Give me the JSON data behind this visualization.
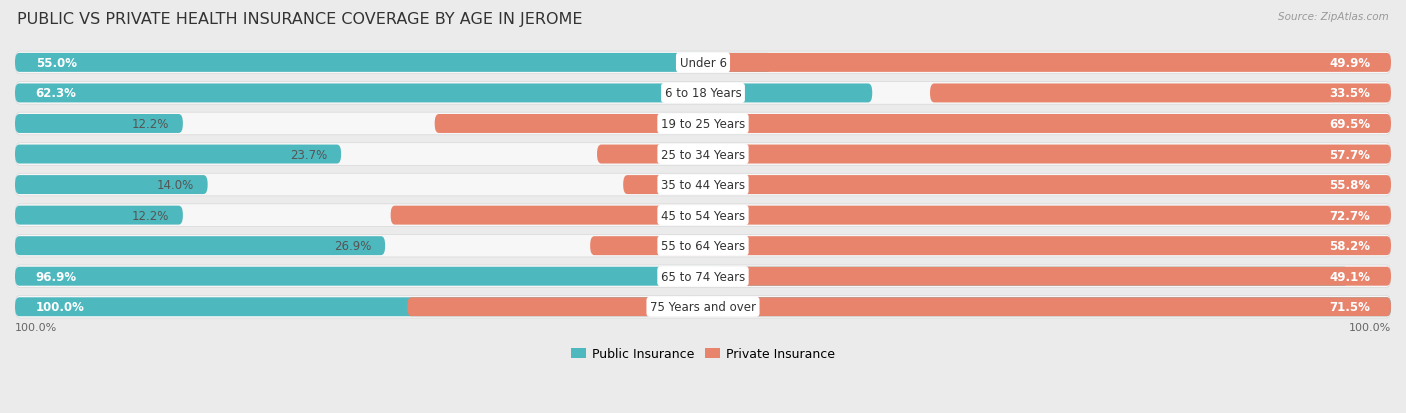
{
  "title": "PUBLIC VS PRIVATE HEALTH INSURANCE COVERAGE BY AGE IN JEROME",
  "source": "Source: ZipAtlas.com",
  "categories": [
    "Under 6",
    "6 to 18 Years",
    "19 to 25 Years",
    "25 to 34 Years",
    "35 to 44 Years",
    "45 to 54 Years",
    "55 to 64 Years",
    "65 to 74 Years",
    "75 Years and over"
  ],
  "public_values": [
    55.0,
    62.3,
    12.2,
    23.7,
    14.0,
    12.2,
    26.9,
    96.9,
    100.0
  ],
  "private_values": [
    49.9,
    33.5,
    69.5,
    57.7,
    55.8,
    72.7,
    58.2,
    49.1,
    71.5
  ],
  "public_color": "#4db8be",
  "private_color": "#e8836c",
  "private_color_light": "#f0a898",
  "bg_color": "#ebebeb",
  "row_bg_color": "#f7f7f7",
  "row_border_color": "#d8d8d8",
  "max_value": 100.0,
  "legend_public": "Public Insurance",
  "legend_private": "Private Insurance",
  "title_fontsize": 11.5,
  "label_fontsize": 8.5,
  "category_fontsize": 8.5,
  "white_label_threshold_pub": 30,
  "white_label_threshold_priv": 30
}
